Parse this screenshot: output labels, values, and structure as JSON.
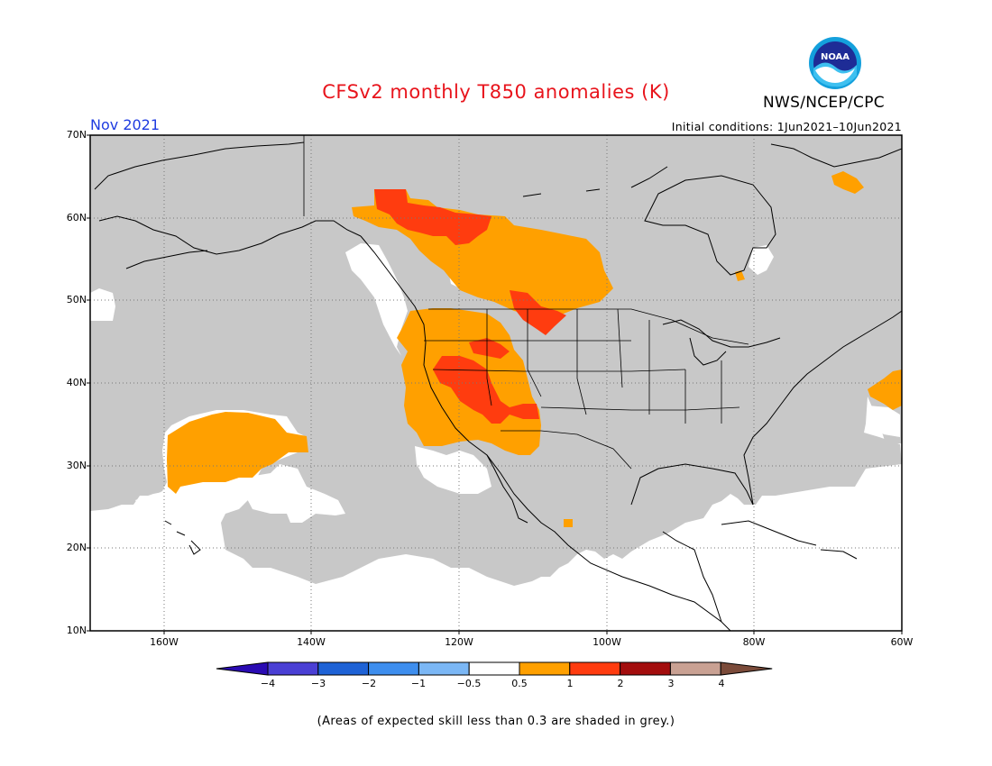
{
  "title": "CFSv2 monthly T850 anomalies (K)",
  "agency": "NWS/NCEP/CPC",
  "logo_text": "NOAA",
  "period": "Nov 2021",
  "initial_conditions": "Initial conditions: 1Jun2021–10Jun2021",
  "footnote": "(Areas of expected skill less than 0.3 are shaded in grey.)",
  "map": {
    "lon_range": [
      -170,
      -60
    ],
    "lat_range": [
      10,
      70
    ],
    "lat_ticks": [
      "70N",
      "60N",
      "50N",
      "40N",
      "30N",
      "20N",
      "10N"
    ],
    "lon_ticks": [
      "160W",
      "140W",
      "120W",
      "100W",
      "80W",
      "60W"
    ],
    "grid": true,
    "colors": {
      "grey_low_skill": "#c8c8c8",
      "anom_0_5_to_1": "#ffa000",
      "anom_1_to_2": "#ff3c0f",
      "background": "#ffffff"
    }
  },
  "colorbar": {
    "labels": [
      "−4",
      "−3",
      "−2",
      "−1",
      "−0.5",
      "0.5",
      "1",
      "2",
      "3",
      "4"
    ],
    "colors": [
      "#2a0bb3",
      "#4a3fd4",
      "#1e62d6",
      "#3e8eee",
      "#7bb7f5",
      "#ffffff",
      "#ffa000",
      "#ff3c0f",
      "#a30d0d",
      "#c9a193",
      "#7b4b3a"
    ]
  }
}
